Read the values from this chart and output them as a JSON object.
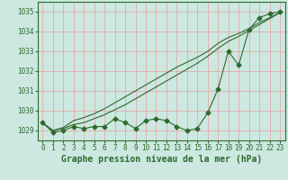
{
  "hours": [
    0,
    1,
    2,
    3,
    4,
    5,
    6,
    7,
    8,
    9,
    10,
    11,
    12,
    13,
    14,
    15,
    16,
    17,
    18,
    19,
    20,
    21,
    22,
    23
  ],
  "pressure_main": [
    1029.4,
    1028.9,
    1029.0,
    1029.2,
    1029.1,
    1029.2,
    1029.2,
    1029.6,
    1029.4,
    1029.1,
    1029.5,
    1029.6,
    1029.5,
    1029.2,
    1029.0,
    1029.1,
    1029.9,
    1031.1,
    1033.0,
    1032.3,
    1034.1,
    1034.7,
    1034.9,
    1035.0
  ],
  "pressure_smooth1": [
    1029.4,
    1029.0,
    1029.15,
    1029.5,
    1029.65,
    1029.85,
    1030.1,
    1030.4,
    1030.7,
    1031.0,
    1031.3,
    1031.6,
    1031.9,
    1032.2,
    1032.45,
    1032.7,
    1033.0,
    1033.4,
    1033.7,
    1033.9,
    1034.15,
    1034.45,
    1034.7,
    1034.95
  ],
  "pressure_smooth2": [
    1029.35,
    1029.0,
    1029.1,
    1029.3,
    1029.4,
    1029.6,
    1029.8,
    1030.05,
    1030.3,
    1030.6,
    1030.9,
    1031.2,
    1031.5,
    1031.8,
    1032.1,
    1032.4,
    1032.75,
    1033.15,
    1033.5,
    1033.75,
    1034.05,
    1034.35,
    1034.65,
    1034.95
  ],
  "line_color": "#2d6a2d",
  "bg_color": "#cce8e0",
  "grid_color": "#e8a0a0",
  "xlabel": "Graphe pression niveau de la mer (hPa)",
  "ylim": [
    1028.5,
    1035.5
  ],
  "xlim": [
    -0.5,
    23.5
  ],
  "yticks": [
    1029,
    1030,
    1031,
    1032,
    1033,
    1034,
    1035
  ],
  "xticks": [
    0,
    1,
    2,
    3,
    4,
    5,
    6,
    7,
    8,
    9,
    10,
    11,
    12,
    13,
    14,
    15,
    16,
    17,
    18,
    19,
    20,
    21,
    22,
    23
  ],
  "marker": "D",
  "marker_size": 2.5,
  "linewidth": 0.8,
  "xlabel_fontsize": 7,
  "tick_fontsize": 5.5
}
